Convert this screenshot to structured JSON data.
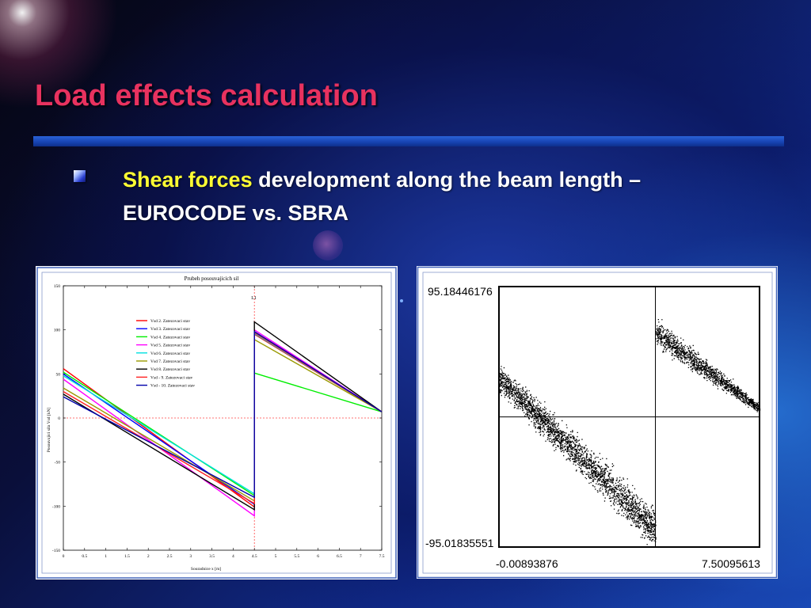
{
  "slide": {
    "title": "Load effects calculation",
    "bullet_highlight": "Shear forces",
    "bullet_rest": " development along the beam length – EUROCODE vs. SBRA"
  },
  "chart_data": [
    {
      "type": "line",
      "title": "Prubeh posouvajicich sil",
      "xlabel": "Souradnice x [m]",
      "ylabel": "Posouvajici sila  Vsd [kN]",
      "xlim": [
        0,
        7.5
      ],
      "ylim": [
        -150,
        150
      ],
      "xticks": [
        "0",
        "0.5",
        "1",
        "1.5",
        "2",
        "2.5",
        "3",
        "3.5",
        "4",
        "4.5",
        "5",
        "5.5",
        "6",
        "6.5",
        "7",
        "7.5"
      ],
      "yticks": [
        "150",
        "100",
        "50",
        "0",
        "-50",
        "-100",
        "-150"
      ],
      "marker_label": "L1",
      "marker_x": 4.5,
      "legend_position": "upper-left",
      "series": [
        {
          "name": "Vsd  2. Zatezovaci stav",
          "color": "#ff0000",
          "points": [
            [
              0,
              56
            ],
            [
              4.5,
              -101
            ],
            [
              4.5,
              95
            ],
            [
              7.5,
              7
            ]
          ]
        },
        {
          "name": "Vsd  3. Zatezovaci stav",
          "color": "#0000ff",
          "points": [
            [
              0,
              50
            ],
            [
              4.5,
              -98
            ],
            [
              4.5,
              98
            ],
            [
              7.5,
              7
            ]
          ]
        },
        {
          "name": "Vsd  4. Zatezovaci stav",
          "color": "#00ee00",
          "points": [
            [
              0,
              52
            ],
            [
              4.5,
              -88
            ],
            [
              4.5,
              51
            ],
            [
              7.5,
              7
            ]
          ]
        },
        {
          "name": "Vsd  5. Zatezovaci stav",
          "color": "#ff00ff",
          "points": [
            [
              0,
              44
            ],
            [
              4.5,
              -111
            ],
            [
              4.5,
              100
            ],
            [
              7.5,
              7
            ]
          ]
        },
        {
          "name": "Vsd  6. Zatezovaci stav",
          "color": "#00e0e0",
          "points": [
            [
              0,
              48
            ],
            [
              4.5,
              -86
            ],
            [
              4.5,
              96
            ],
            [
              7.5,
              7
            ]
          ]
        },
        {
          "name": "Vsd  7. Zatezovaci stav",
          "color": "#999900",
          "points": [
            [
              0,
              34
            ],
            [
              4.5,
              -94
            ],
            [
              4.5,
              89
            ],
            [
              7.5,
              7
            ]
          ]
        },
        {
          "name": "Vsd  8. Zatezovaci stav",
          "color": "#000000",
          "points": [
            [
              0,
              27
            ],
            [
              4.5,
              -104
            ],
            [
              4.5,
              109
            ],
            [
              7.5,
              7
            ]
          ]
        },
        {
          "name": "Vsd - 9. Zatezovaci stav",
          "color": "#ff2020",
          "points": [
            [
              0,
              30
            ],
            [
              4.5,
              -97
            ],
            [
              4.5,
              97
            ],
            [
              7.5,
              7
            ]
          ]
        },
        {
          "name": "Vsd - 10. Zatezovaci stav",
          "color": "#0000aa",
          "points": [
            [
              0,
              24
            ],
            [
              4.5,
              -90
            ],
            [
              4.5,
              98
            ],
            [
              7.5,
              7
            ]
          ]
        }
      ]
    },
    {
      "type": "scatter",
      "ylim_labels": [
        "95.18446176",
        "-95.01835551"
      ],
      "xlim_labels": [
        "-0.00893876",
        "7.50095613"
      ],
      "xlim": [
        -0.00893876,
        7.50095613
      ],
      "ylim": [
        -95.01835551,
        95.18446176
      ],
      "band": {
        "left": {
          "x": [
            0,
            4.5
          ],
          "center": [
            28,
            -82
          ],
          "spread": [
            10,
            15
          ]
        },
        "right": {
          "x": [
            4.5,
            7.5
          ],
          "center": [
            62,
            6
          ],
          "spread": [
            10,
            4
          ]
        }
      }
    }
  ]
}
